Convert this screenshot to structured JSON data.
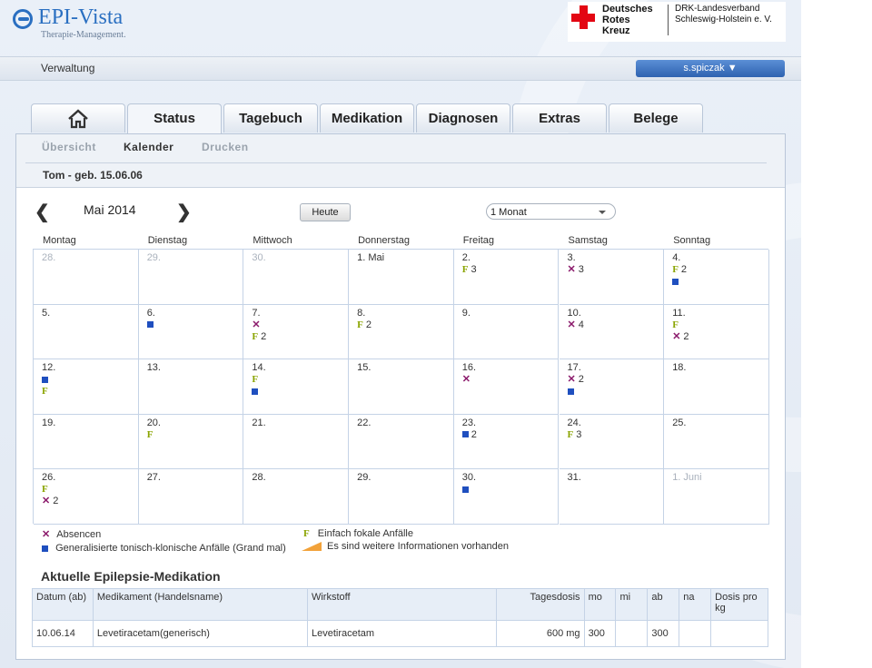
{
  "header": {
    "brand": "EPI-Vista",
    "tagline": "Therapie-Management.",
    "partner_name_lines": [
      "Deutsches",
      "Rotes",
      "Kreuz"
    ],
    "partner_org_lines": [
      "DRK-Landesverband",
      "Schleswig-Holstein e. V."
    ]
  },
  "topbar": {
    "label": "Verwaltung",
    "user": "s.spiczak ▼"
  },
  "tabs": [
    {
      "label": "",
      "icon": "home-icon"
    },
    {
      "label": "Status"
    },
    {
      "label": "Tagebuch"
    },
    {
      "label": "Medikation"
    },
    {
      "label": "Diagnosen"
    },
    {
      "label": "Extras"
    },
    {
      "label": "Belege"
    }
  ],
  "subnav": [
    "Übersicht",
    "Kalender",
    "Drucken"
  ],
  "patient": "Tom - geb. 15.06.06",
  "calendar": {
    "prev": "❮",
    "next": "❯",
    "month": "Mai 2014",
    "today_button": "Heute",
    "view_select": "1 Monat",
    "days": [
      "Montag",
      "Dienstag",
      "Mittwoch",
      "Donnerstag",
      "Freitag",
      "Samstag",
      "Sonntag"
    ],
    "weeks": [
      [
        {
          "d": "28.",
          "other": true,
          "m": []
        },
        {
          "d": "29.",
          "other": true,
          "m": []
        },
        {
          "d": "30.",
          "other": true,
          "m": []
        },
        {
          "d": "1. Mai",
          "m": []
        },
        {
          "d": "2.",
          "m": [
            {
              "t": "F",
              "c": "3"
            }
          ]
        },
        {
          "d": "3.",
          "m": [
            {
              "t": "X",
              "c": "3"
            }
          ]
        },
        {
          "d": "4.",
          "m": [
            {
              "t": "F",
              "c": "2"
            },
            {
              "t": "S",
              "c": ""
            }
          ]
        }
      ],
      [
        {
          "d": "5.",
          "m": []
        },
        {
          "d": "6.",
          "m": [
            {
              "t": "S",
              "c": ""
            }
          ]
        },
        {
          "d": "7.",
          "m": [
            {
              "t": "X",
              "c": ""
            },
            {
              "t": "F",
              "c": "2"
            }
          ]
        },
        {
          "d": "8.",
          "m": [
            {
              "t": "F",
              "c": "2"
            }
          ]
        },
        {
          "d": "9.",
          "m": []
        },
        {
          "d": "10.",
          "m": [
            {
              "t": "X",
              "c": "4"
            }
          ]
        },
        {
          "d": "11.",
          "m": [
            {
              "t": "F",
              "c": ""
            },
            {
              "t": "X",
              "c": "2"
            }
          ]
        }
      ],
      [
        {
          "d": "12.",
          "m": [
            {
              "t": "S",
              "c": ""
            },
            {
              "t": "F",
              "c": ""
            }
          ]
        },
        {
          "d": "13.",
          "m": []
        },
        {
          "d": "14.",
          "m": [
            {
              "t": "F",
              "c": ""
            },
            {
              "t": "S",
              "c": ""
            }
          ]
        },
        {
          "d": "15.",
          "m": []
        },
        {
          "d": "16.",
          "m": [
            {
              "t": "X",
              "c": ""
            }
          ]
        },
        {
          "d": "17.",
          "m": [
            {
              "t": "X",
              "c": "2"
            },
            {
              "t": "S",
              "c": ""
            }
          ]
        },
        {
          "d": "18.",
          "m": []
        }
      ],
      [
        {
          "d": "19.",
          "m": []
        },
        {
          "d": "20.",
          "m": [
            {
              "t": "F",
              "c": ""
            }
          ]
        },
        {
          "d": "21.",
          "m": []
        },
        {
          "d": "22.",
          "m": []
        },
        {
          "d": "23.",
          "m": [
            {
              "t": "S",
              "c": "2"
            }
          ]
        },
        {
          "d": "24.",
          "m": [
            {
              "t": "F",
              "c": "3"
            }
          ]
        },
        {
          "d": "25.",
          "m": []
        }
      ],
      [
        {
          "d": "26.",
          "m": [
            {
              "t": "F",
              "c": ""
            },
            {
              "t": "X",
              "c": "2"
            }
          ]
        },
        {
          "d": "27.",
          "m": []
        },
        {
          "d": "28.",
          "m": []
        },
        {
          "d": "29.",
          "m": []
        },
        {
          "d": "30.",
          "m": [
            {
              "t": "S",
              "c": ""
            }
          ]
        },
        {
          "d": "31.",
          "m": []
        },
        {
          "d": "1. Juni",
          "other": true,
          "m": []
        }
      ]
    ]
  },
  "legend": {
    "absence": "Absencen",
    "focal": "Einfach fokale Anfälle",
    "grandmal": "Generalisierte tonisch-klonische Anfälle (Grand mal)",
    "more_info": "Es sind weitere Informationen vorhanden"
  },
  "medication": {
    "title": "Aktuelle Epilepsie-Medikation",
    "columns": [
      "Datum (ab)",
      "Medikament (Handelsname)",
      "Wirkstoff",
      "Tagesdosis",
      "mo",
      "mi",
      "ab",
      "na",
      "Dosis pro kg"
    ],
    "rows": [
      [
        "10.06.14",
        "Levetiracetam(generisch)",
        "Levetiracetam",
        "600 mg",
        "300",
        "",
        "300",
        "",
        ""
      ]
    ]
  }
}
